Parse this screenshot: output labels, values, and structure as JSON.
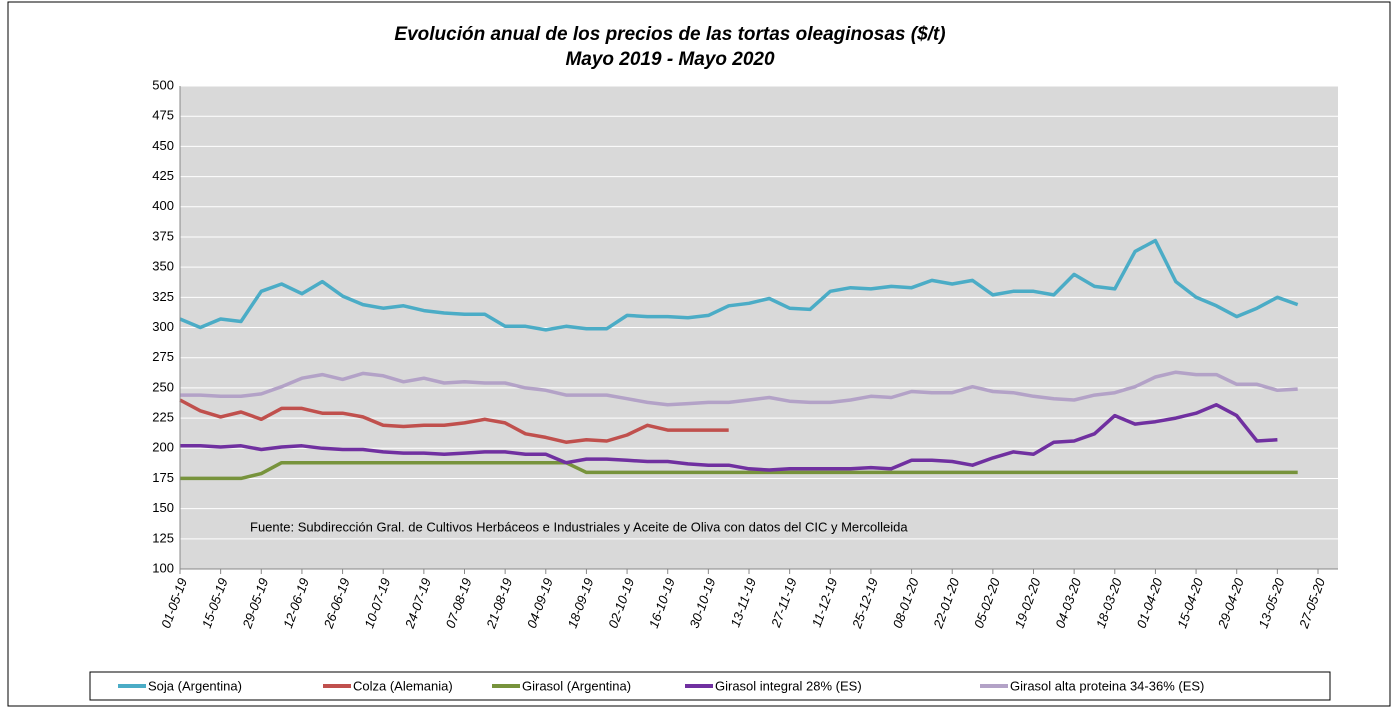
{
  "chart_data": {
    "type": "line",
    "title": "Evolución anual de los precios de las tortas oleaginosas ($/t)",
    "subtitle": "Mayo 2019 - Mayo 2020",
    "annotation": "Fuente: Subdirección Gral. de Cultivos Herbáceos e Industriales y Aceite de Oliva con datos del CIC y Mercolleida",
    "categories": [
      "01-05-19",
      null,
      "15-05-19",
      null,
      "29-05-19",
      null,
      "12-06-19",
      null,
      "26-06-19",
      null,
      "10-07-19",
      null,
      "24-07-19",
      null,
      "07-08-19",
      null,
      "21-08-19",
      null,
      "04-09-19",
      null,
      "18-09-19",
      null,
      "02-10-19",
      null,
      "16-10-19",
      null,
      "30-10-19",
      null,
      "13-11-19",
      null,
      "27-11-19",
      null,
      "11-12-19",
      null,
      "25-12-19",
      null,
      "08-01-20",
      null,
      "22-01-20",
      null,
      "05-02-20",
      null,
      "19-02-20",
      null,
      "04-03-20",
      null,
      "18-03-20",
      null,
      "01-04-20",
      null,
      "15-04-20",
      null,
      "29-04-20",
      null,
      "13-05-20",
      null,
      "27-05-20"
    ],
    "series": [
      {
        "name": "Soja (Argentina)",
        "color": "#4bacc6",
        "values": [
          307,
          300,
          307,
          305,
          330,
          336,
          328,
          338,
          326,
          319,
          316,
          318,
          314,
          312,
          311,
          311,
          301,
          301,
          298,
          301,
          299,
          299,
          310,
          309,
          309,
          308,
          310,
          318,
          320,
          324,
          316,
          315,
          330,
          333,
          332,
          334,
          333,
          339,
          336,
          339,
          327,
          330,
          330,
          327,
          344,
          334,
          332,
          363,
          372,
          338,
          325,
          318,
          309,
          316,
          325,
          319,
          null
        ]
      },
      {
        "name": "Colza (Alemania)",
        "color": "#c0504d",
        "values": [
          240,
          231,
          226,
          230,
          224,
          233,
          233,
          229,
          229,
          226,
          219,
          218,
          219,
          219,
          221,
          224,
          221,
          212,
          209,
          205,
          207,
          206,
          211,
          219,
          215,
          215,
          215,
          215,
          null,
          null,
          null,
          null,
          null,
          null,
          null,
          null,
          null,
          null,
          null,
          null,
          null,
          null,
          null,
          null,
          null,
          null,
          null,
          null,
          null,
          null,
          null,
          null,
          null,
          null,
          null,
          null,
          null
        ]
      },
      {
        "name": "Girasol (Argentina)",
        "color": "#77933c",
        "values": [
          175,
          175,
          175,
          175,
          179,
          188,
          188,
          188,
          188,
          188,
          188,
          188,
          188,
          188,
          188,
          188,
          188,
          188,
          188,
          188,
          180,
          180,
          180,
          180,
          180,
          180,
          180,
          180,
          180,
          180,
          180,
          180,
          180,
          180,
          180,
          180,
          180,
          180,
          180,
          180,
          180,
          180,
          180,
          180,
          180,
          180,
          180,
          180,
          180,
          180,
          180,
          180,
          180,
          180,
          180,
          180,
          null
        ]
      },
      {
        "name": "Girasol integral 28% (ES)",
        "color": "#7030a0",
        "values": [
          202,
          202,
          201,
          202,
          199,
          201,
          202,
          200,
          199,
          199,
          197,
          196,
          196,
          195,
          196,
          197,
          197,
          195,
          195,
          188,
          191,
          191,
          190,
          189,
          189,
          187,
          186,
          186,
          183,
          182,
          183,
          183,
          183,
          183,
          184,
          183,
          190,
          190,
          189,
          186,
          192,
          197,
          195,
          205,
          206,
          212,
          227,
          220,
          222,
          225,
          229,
          236,
          227,
          206,
          207,
          null,
          null
        ]
      },
      {
        "name": "Girasol alta proteina 34-36% (ES)",
        "color": "#b3a2c7",
        "values": [
          244,
          244,
          243,
          243,
          245,
          251,
          258,
          261,
          257,
          262,
          260,
          255,
          258,
          254,
          255,
          254,
          254,
          250,
          248,
          244,
          244,
          244,
          241,
          238,
          236,
          237,
          238,
          238,
          240,
          242,
          239,
          238,
          238,
          240,
          243,
          242,
          247,
          246,
          246,
          251,
          247,
          246,
          243,
          241,
          240,
          244,
          246,
          251,
          259,
          263,
          261,
          261,
          253,
          253,
          248,
          249,
          null
        ]
      }
    ],
    "ylim": [
      100,
      500
    ],
    "yticks": [
      100,
      125,
      150,
      175,
      200,
      225,
      250,
      275,
      300,
      325,
      350,
      375,
      400,
      425,
      450,
      475,
      500
    ],
    "grid": true
  }
}
